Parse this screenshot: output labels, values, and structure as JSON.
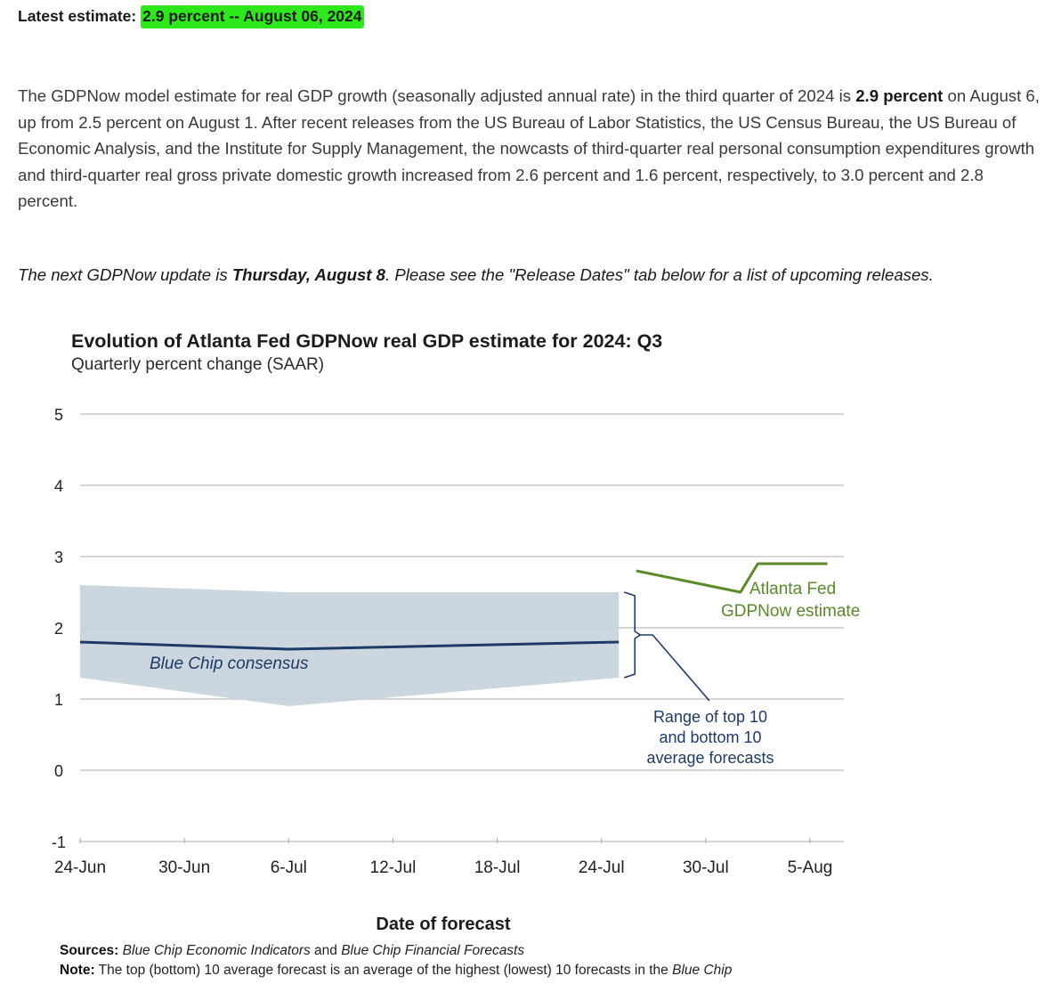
{
  "header": {
    "latest_label": "Latest estimate:",
    "latest_value": "2.9 percent -- August 06, 2024"
  },
  "intro": {
    "p1_pre": "The GDPNow model estimate for real GDP growth (seasonally adjusted annual rate) in the third quarter of 2024 is ",
    "p1_bold": "2.9 percent",
    "p1_post": " on August 6, up from 2.5 percent on August 1. After recent releases from the US Bureau of Labor Statistics, the US Census Bureau, the US Bureau of Economic Analysis, and the Institute for Supply Management, the nowcasts of third-quarter real personal consumption expenditures growth and third-quarter real gross private domestic growth increased from 2.6 percent and 1.6 percent, respectively, to 3.0 percent and 2.8 percent."
  },
  "next_update": {
    "pre": "The next GDPNow update is ",
    "bold": "Thursday, August 8",
    "post": ". Please see the \"Release Dates\" tab below for a list of upcoming releases."
  },
  "chart_data": {
    "type": "line",
    "title": "Evolution of Atlanta Fed GDPNow real GDP estimate for 2024: Q3",
    "subtitle": "Quarterly percent change (SAAR)",
    "xlabel": "Date of forecast",
    "ylabel": "",
    "ylim": [
      -1,
      5
    ],
    "yticks": [
      "5",
      "4",
      "3",
      "2",
      "1",
      "0",
      "-1"
    ],
    "xticks": [
      "24-Jun",
      "30-Jun",
      "6-Jul",
      "12-Jul",
      "18-Jul",
      "24-Jul",
      "30-Jul",
      "5-Aug"
    ],
    "grid": "horizontal",
    "series": [
      {
        "name": "Atlanta Fed GDPNow estimate",
        "color": "#5b8a2a",
        "x": [
          "2024-07-26",
          "2024-08-01",
          "2024-08-02",
          "2024-08-05",
          "2024-08-06"
        ],
        "y": [
          2.8,
          2.5,
          2.9,
          2.9,
          2.9
        ]
      },
      {
        "name": "Blue Chip consensus",
        "color": "#1e3a68",
        "x": [
          "2024-06-24",
          "2024-07-06",
          "2024-07-25"
        ],
        "y": [
          1.8,
          1.7,
          1.8
        ]
      }
    ],
    "range_band": {
      "name": "Range of top 10 and bottom 10 average forecasts",
      "color": "#c6d1db",
      "x": [
        "2024-06-24",
        "2024-07-06",
        "2024-07-25"
      ],
      "upper": [
        2.6,
        2.5,
        2.5
      ],
      "lower": [
        1.3,
        0.9,
        1.3
      ]
    },
    "annotations": {
      "gdpnow_line1": "Atlanta Fed",
      "gdpnow_line2": "GDPNow estimate",
      "bluechip": "Blue Chip consensus",
      "range_line1": "Range of top 10",
      "range_line2": "and bottom 10",
      "range_line3": "average forecasts"
    }
  },
  "footer": {
    "sources_label": "Sources:",
    "sources_text": "Blue Chip Economic Indicators and Blue Chip Financial Forecasts",
    "sources_text_a": "Blue Chip Economic Indicators",
    "sources_and": " and ",
    "sources_text_b": "Blue Chip Financial Forecasts",
    "note_label": "Note:",
    "note_text": "The top (bottom) 10 average forecast is an average of the highest (lowest) 10 forecasts in the Blue Chip",
    "note_text_a": " The top (bottom) 10 average forecast is an average of the highest (lowest) 10 forecasts in the ",
    "note_text_b": "Blue Chip"
  }
}
